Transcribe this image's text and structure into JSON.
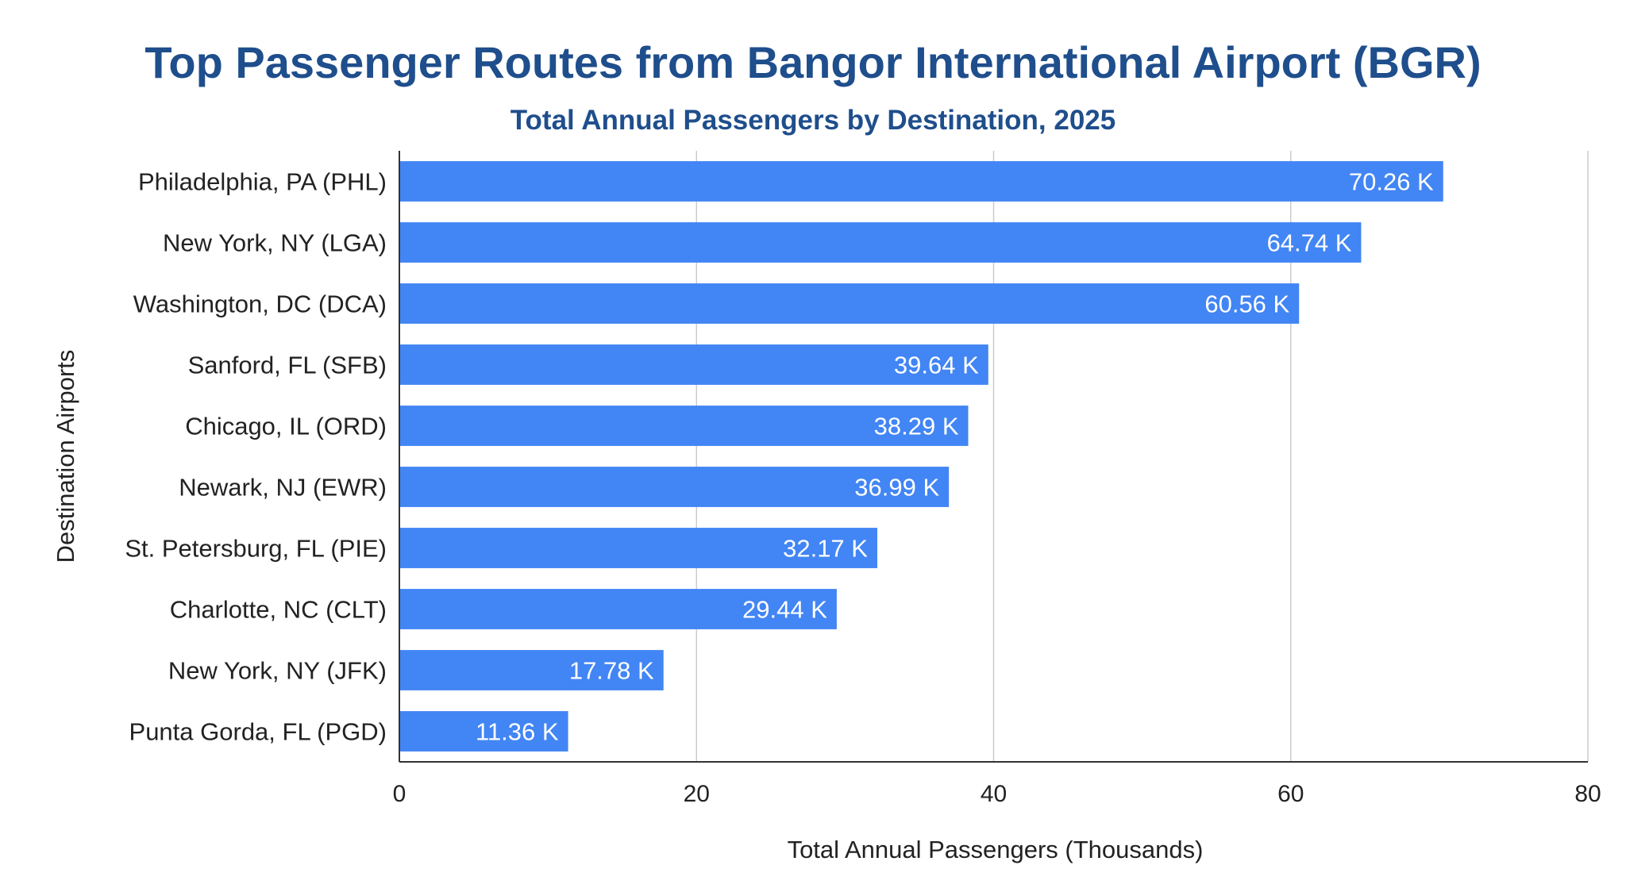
{
  "colors": {
    "title": "#1f4e8c",
    "subtitle": "#1f4e8c",
    "bar": "#4285f4",
    "bar_label": "#ffffff",
    "grid": "#cccccc",
    "axis": "#333333",
    "text": "#222222"
  },
  "chart_data": {
    "type": "bar",
    "orientation": "horizontal",
    "title": "Top Passenger Routes from Bangor International Airport (BGR)",
    "subtitle": "Total Annual Passengers by Destination, 2025",
    "xlabel": "Total Annual Passengers (Thousands)",
    "ylabel": "Destination Airports",
    "xlim": [
      0,
      80
    ],
    "xticks": [
      0,
      20,
      40,
      60,
      80
    ],
    "grid": "vertical",
    "legend": "none",
    "categories": [
      "Philadelphia, PA (PHL)",
      "New York, NY (LGA)",
      "Washington, DC (DCA)",
      "Sanford, FL (SFB)",
      "Chicago, IL (ORD)",
      "Newark, NJ (EWR)",
      "St. Petersburg, FL (PIE)",
      "Charlotte, NC (CLT)",
      "New York, NY (JFK)",
      "Punta Gorda, FL (PGD)"
    ],
    "values": [
      70.26,
      64.74,
      60.56,
      39.64,
      38.29,
      36.99,
      32.17,
      29.44,
      17.78,
      11.36
    ],
    "data_labels": [
      "70.26 K",
      "64.74 K",
      "60.56 K",
      "39.64 K",
      "38.29 K",
      "36.99 K",
      "32.17 K",
      "29.44 K",
      "17.78 K",
      "11.36 K"
    ]
  }
}
